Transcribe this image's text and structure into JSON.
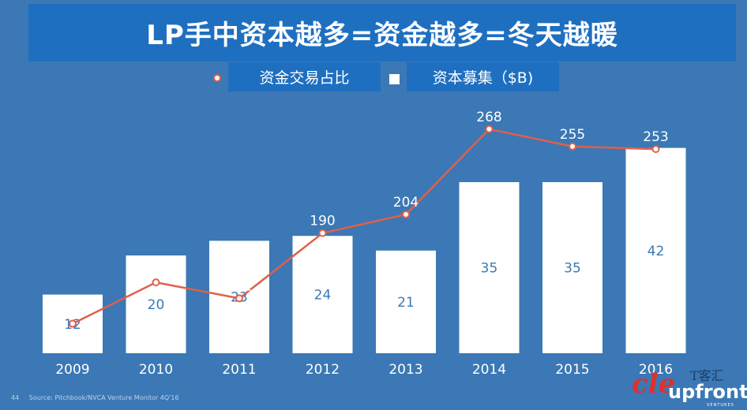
{
  "chart_data": {
    "type": "bar",
    "title": "LP手中资本越多=资金越多=冬天越暖",
    "categories": [
      "2009",
      "2010",
      "2011",
      "2012",
      "2013",
      "2014",
      "2015",
      "2016"
    ],
    "series": [
      {
        "name": "资本募集（$B)",
        "type": "bar",
        "values": [
          12,
          20,
          23,
          24,
          21,
          35,
          35,
          42
        ],
        "color": "#ffffff"
      },
      {
        "name": "资金交易占比",
        "type": "line",
        "values": [
          122,
          153,
          141,
          190,
          204,
          268,
          255,
          253
        ],
        "color": "#e0604a"
      }
    ],
    "legend": "top",
    "grid": false
  },
  "footer": {
    "page_number": "44",
    "source": "Source: Pitchbook/NVCA Venture Monitor 4Q'16"
  },
  "logo": {
    "text": "upfront",
    "subtext": "VENTURES",
    "watermark_cn": "T客汇",
    "watermark_script": "cle"
  }
}
